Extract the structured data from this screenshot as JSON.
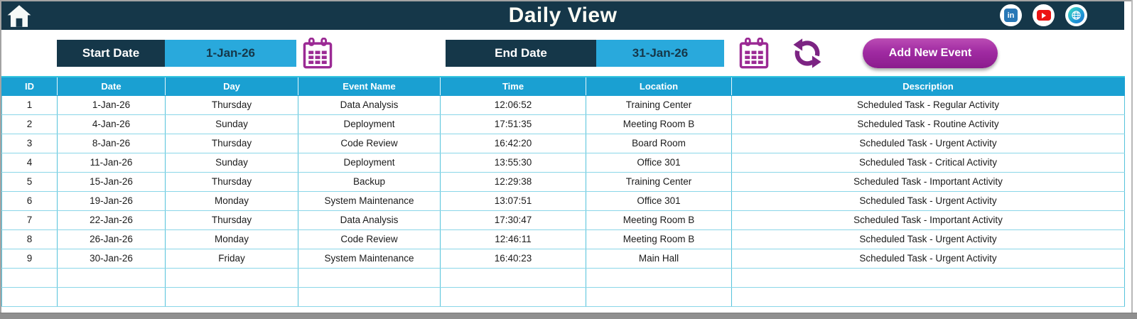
{
  "header": {
    "title": "Daily View",
    "social_icons": [
      {
        "name": "linkedin",
        "label": "in",
        "color": "#2878b7"
      },
      {
        "name": "youtube",
        "color": "#ec1313"
      },
      {
        "name": "website",
        "color": "#1f9ad6"
      }
    ]
  },
  "filters": {
    "start": {
      "label": "Start Date",
      "value": "1-Jan-26"
    },
    "end": {
      "label": "End Date",
      "value": "31-Jan-26"
    },
    "add_button_label": "Add New Event"
  },
  "table": {
    "columns": [
      "ID",
      "Date",
      "Day",
      "Event Name",
      "Time",
      "Location",
      "Description"
    ],
    "rows": [
      [
        "1",
        "1-Jan-26",
        "Thursday",
        "Data Analysis",
        "12:06:52",
        "Training Center",
        "Scheduled Task - Regular Activity"
      ],
      [
        "2",
        "4-Jan-26",
        "Sunday",
        "Deployment",
        "17:51:35",
        "Meeting Room B",
        "Scheduled Task - Routine Activity"
      ],
      [
        "3",
        "8-Jan-26",
        "Thursday",
        "Code Review",
        "16:42:20",
        "Board Room",
        "Scheduled Task - Urgent Activity"
      ],
      [
        "4",
        "11-Jan-26",
        "Sunday",
        "Deployment",
        "13:55:30",
        "Office 301",
        "Scheduled Task - Critical Activity"
      ],
      [
        "5",
        "15-Jan-26",
        "Thursday",
        "Backup",
        "12:29:38",
        "Training Center",
        "Scheduled Task - Important Activity"
      ],
      [
        "6",
        "19-Jan-26",
        "Monday",
        "System Maintenance",
        "13:07:51",
        "Office 301",
        "Scheduled Task - Urgent Activity"
      ],
      [
        "7",
        "22-Jan-26",
        "Thursday",
        "Data Analysis",
        "17:30:47",
        "Meeting Room B",
        "Scheduled Task - Important Activity"
      ],
      [
        "8",
        "26-Jan-26",
        "Monday",
        "Code Review",
        "12:46:11",
        "Meeting Room B",
        "Scheduled Task - Urgent Activity"
      ],
      [
        "9",
        "30-Jan-26",
        "Friday",
        "System Maintenance",
        "16:40:23",
        "Main Hall",
        "Scheduled Task - Urgent Activity"
      ]
    ],
    "empty_row_count": 2
  },
  "colors": {
    "header_navy": "#153749",
    "accent_blue": "#29a9dc",
    "table_header_blue": "#1aa0d2",
    "table_border_cyan": "#55c3db",
    "calendar_purple": "#9b2a94",
    "refresh_purple": "#7c2483",
    "button_purple": "#a02ba2",
    "window_gray": "#8f8f8f"
  }
}
